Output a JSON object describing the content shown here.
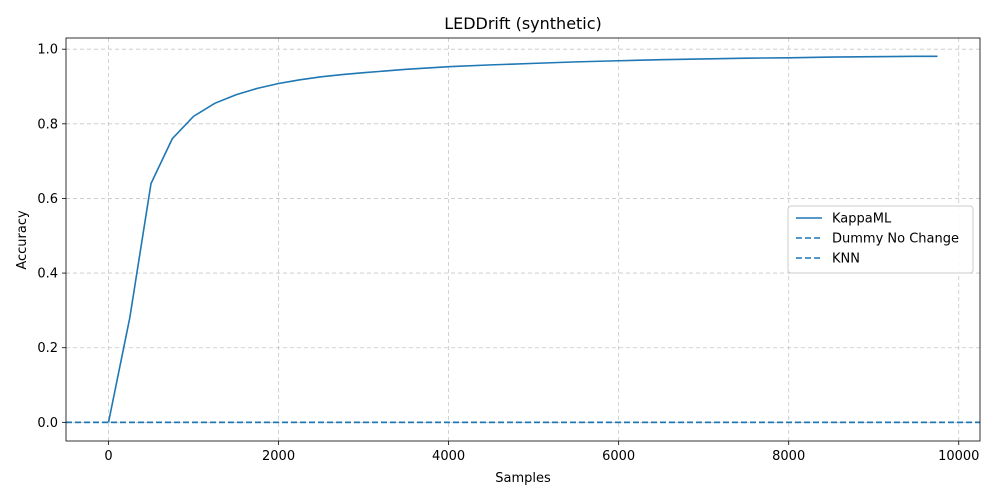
{
  "chart_data": {
    "type": "line",
    "title": "LEDDrift (synthetic)",
    "xlabel": "Samples",
    "ylabel": "Accuracy",
    "xlim": [
      -500,
      10250
    ],
    "ylim": [
      -0.05,
      1.03
    ],
    "xticks": [
      0,
      2000,
      4000,
      6000,
      8000,
      10000
    ],
    "xtick_labels": [
      "0",
      "2000",
      "4000",
      "6000",
      "8000",
      "10000"
    ],
    "yticks": [
      0.0,
      0.2,
      0.4,
      0.6,
      0.8,
      1.0
    ],
    "ytick_labels": [
      "0.0",
      "0.2",
      "0.4",
      "0.6",
      "0.8",
      "1.0"
    ],
    "grid": true,
    "legend_position": "center-right",
    "series": [
      {
        "name": "KappaML",
        "style": "solid",
        "color": "#1f77b4",
        "x": [
          0,
          250,
          500,
          750,
          1000,
          1250,
          1500,
          1750,
          2000,
          2250,
          2500,
          2750,
          3000,
          3500,
          4000,
          4500,
          5000,
          5500,
          6000,
          6500,
          7000,
          7500,
          8000,
          8500,
          9000,
          9500,
          9750
        ],
        "y": [
          0.0,
          0.28,
          0.64,
          0.76,
          0.82,
          0.855,
          0.878,
          0.895,
          0.908,
          0.918,
          0.926,
          0.932,
          0.937,
          0.946,
          0.953,
          0.958,
          0.962,
          0.966,
          0.969,
          0.972,
          0.974,
          0.976,
          0.977,
          0.979,
          0.98,
          0.981,
          0.981
        ]
      },
      {
        "name": "Dummy No Change",
        "style": "dashed",
        "color": "#1f77b4",
        "y_constant": 0.0
      },
      {
        "name": "KNN",
        "style": "dashed",
        "color": "#1f77b4",
        "y_constant": 0.0
      }
    ]
  }
}
